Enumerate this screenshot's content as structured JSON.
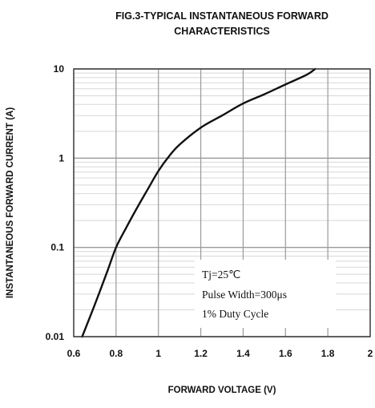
{
  "chart_data": {
    "type": "line",
    "title": "FIG.3-TYPICAL INSTANTANEOUS FORWARD",
    "subtitle": "CHARACTERISTICS",
    "xlabel": "FORWARD VOLTAGE (V)",
    "ylabel": "INSTANTANEOUS FORWARD CURRENT (A)",
    "xlim": [
      0.6,
      2.0
    ],
    "ylim": [
      0.01,
      10
    ],
    "yscale": "log",
    "x_ticks": [
      {
        "value": 0.6,
        "label": "0.6"
      },
      {
        "value": 0.8,
        "label": "0.8"
      },
      {
        "value": 1.0,
        "label": "1"
      },
      {
        "value": 1.2,
        "label": "1.2"
      },
      {
        "value": 1.4,
        "label": "1.4"
      },
      {
        "value": 1.6,
        "label": "1.6"
      },
      {
        "value": 1.8,
        "label": "1.8"
      },
      {
        "value": 2.0,
        "label": "2"
      }
    ],
    "y_ticks": [
      {
        "value": 0.01,
        "label": "0.01"
      },
      {
        "value": 0.1,
        "label": "0.1"
      },
      {
        "value": 1,
        "label": "1"
      },
      {
        "value": 10,
        "label": "10"
      }
    ],
    "grid": true,
    "annotations": [
      "Tj=25℃",
      "Pulse Width=300μs",
      "1% Duty Cycle"
    ],
    "series": [
      {
        "x": [
          0.64,
          0.7,
          0.76,
          0.8,
          0.85,
          0.9,
          0.95,
          1.0,
          1.05,
          1.1,
          1.2,
          1.3,
          1.4,
          1.5,
          1.6,
          1.7,
          1.74
        ],
        "y": [
          0.01,
          0.023,
          0.055,
          0.1,
          0.17,
          0.28,
          0.45,
          0.72,
          1.05,
          1.42,
          2.2,
          3.0,
          4.1,
          5.2,
          6.7,
          8.6,
          10
        ]
      }
    ],
    "colors": {
      "line": "#111111",
      "axis": "#333333",
      "grid_major": "#9a9a9a",
      "grid_minor": "#d8d8d8",
      "legend_box": "#ffffff"
    }
  }
}
